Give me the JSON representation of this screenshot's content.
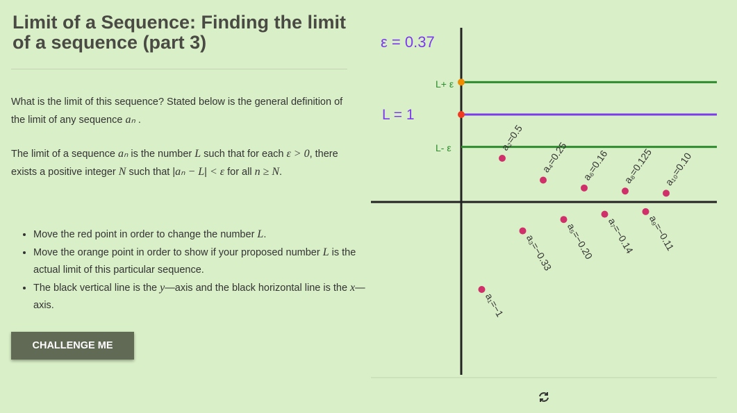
{
  "title": "Limit of a Sequence: Finding the limit of a sequence (part 3)",
  "intro": {
    "text": "What is the limit of this sequence? Stated below is the general definition of the limit of any sequence ",
    "math": "aₙ",
    "end": " ."
  },
  "definition": {
    "t1": "The limit of a sequence ",
    "m1": "aₙ",
    "t2": " is the number ",
    "m2": "L",
    "t3": " such that for each ",
    "m3": "ε > 0",
    "t4": ", there exists a positive integer ",
    "m4": "N",
    "t5": " such that |",
    "m5": "aₙ − L",
    "t6": "| ",
    "m6": "< ε",
    "t7": " for all ",
    "m7": "n ≥ N",
    "t8": "."
  },
  "bullets": [
    {
      "t1": "Move the red point in order to change the number ",
      "m": "L",
      "t2": "."
    },
    {
      "t1": "Move the orange point in order to show if your proposed number ",
      "m": "L",
      "t2": " is the actual limit of this particular sequence."
    },
    {
      "t1": "The black vertical line is the ",
      "m": "y",
      "t2": "—axis and the black horizontal line is the ",
      "m2": "x",
      "t3": "—axis."
    }
  ],
  "challenge_button": "CHALLENGE ME",
  "graph": {
    "epsilon_label": "ε = 0.37",
    "L_label": "L = 1",
    "upper_label": "L+ ε",
    "lower_label": "L- ε",
    "colors": {
      "L": "#7c3aed",
      "band": "#2e8b2e",
      "L_point": "#f03a22",
      "eps_point": "#f08c00",
      "terms": "#d0306a"
    },
    "refresh_icon": "refresh-icon"
  },
  "chart_data": {
    "type": "scatter",
    "L": 1,
    "epsilon": 0.37,
    "x": [
      1,
      2,
      3,
      4,
      5,
      6,
      7,
      8,
      9,
      10
    ],
    "y": [
      -1,
      0.5,
      -0.33,
      0.25,
      -0.2,
      0.16,
      -0.14,
      0.125,
      -0.11,
      0.1
    ],
    "labels": [
      "a₁=−1",
      "a₂=0.5",
      "a₃=−0.33",
      "a₄=0.25",
      "a₅=−0.20",
      "a₆=0.16",
      "a₇=−0.14",
      "a₈=0.125",
      "a₉=−0.11",
      "a₁₀=0.10"
    ]
  }
}
